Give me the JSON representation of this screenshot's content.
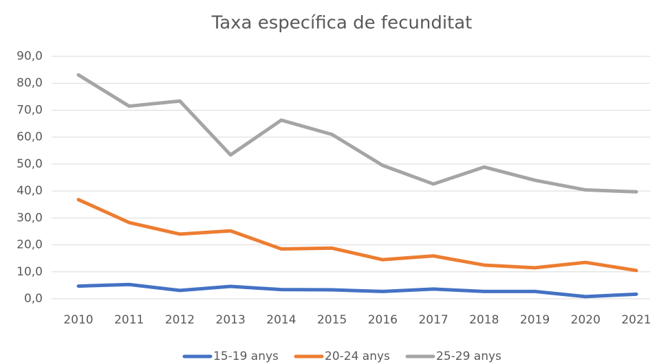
{
  "chart_data": {
    "type": "line",
    "title": "Taxa específica de fecunditat",
    "categories": [
      "2010",
      "2011",
      "2012",
      "2013",
      "2014",
      "2015",
      "2016",
      "2017",
      "2018",
      "2019",
      "2020",
      "2021"
    ],
    "series": [
      {
        "name": "15-19 anys",
        "color": "#4472c4",
        "values": [
          4.7,
          5.3,
          3.1,
          4.6,
          3.4,
          3.3,
          2.7,
          3.6,
          2.7,
          2.7,
          0.8,
          1.7
        ]
      },
      {
        "name": "20-24 anys",
        "color": "#ed7d31",
        "values": [
          36.8,
          28.3,
          24.0,
          25.2,
          18.5,
          18.8,
          14.5,
          15.9,
          12.5,
          11.5,
          13.5,
          10.5
        ]
      },
      {
        "name": "25-29 anys",
        "color": "#a5a5a5",
        "values": [
          83.1,
          71.5,
          73.4,
          53.4,
          66.3,
          61.0,
          49.5,
          42.6,
          48.9,
          44.0,
          40.4,
          39.7
        ]
      }
    ],
    "ylim": [
      0,
      90
    ],
    "yticks": [
      {
        "value": 0,
        "label": "0,0"
      },
      {
        "value": 10,
        "label": "10,0"
      },
      {
        "value": 20,
        "label": "20,0"
      },
      {
        "value": 30,
        "label": "30,0"
      },
      {
        "value": 40,
        "label": "40,0"
      },
      {
        "value": 50,
        "label": "50,0"
      },
      {
        "value": 60,
        "label": "60,0"
      },
      {
        "value": 70,
        "label": "70,0"
      },
      {
        "value": 80,
        "label": "80,0"
      },
      {
        "value": 90,
        "label": "90,0"
      }
    ],
    "grid": true,
    "legend": "bottom"
  }
}
